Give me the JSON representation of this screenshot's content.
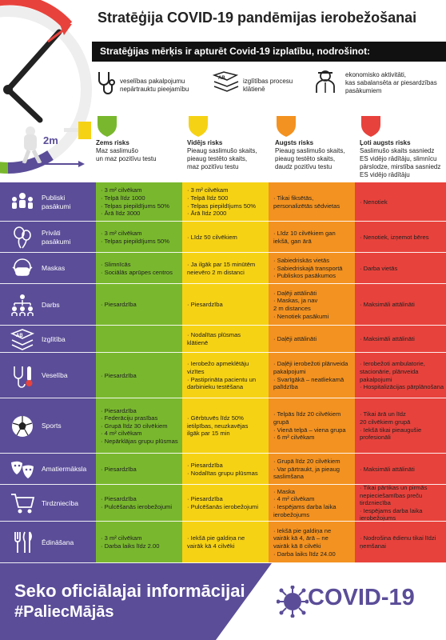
{
  "title": "Stratēģija COVID-19 pandēmijas ierobežošanai",
  "goal": "Stratēģijas mērķis ir apturēt Covid-19 izplatību, nodrošinot:",
  "ensures": [
    {
      "icon": "stethoscope-icon",
      "text": [
        "veselības pakalpojumu",
        "nepārtrauktu pieejamību"
      ]
    },
    {
      "icon": "books-icon",
      "text": [
        "izglītības procesu",
        "klātienē"
      ]
    },
    {
      "icon": "worker-icon",
      "text": [
        "ekonomisko aktivitāti,",
        "kas sabalansēta ar piesardzības",
        "pasākumiem"
      ]
    }
  ],
  "distance_label": "2m",
  "risks": [
    {
      "title": "Zems risks",
      "desc": [
        "Maz saslimušo",
        "un maz pozitīvu testu"
      ],
      "color": "#79b82e"
    },
    {
      "title": "Vidējs risks",
      "desc": [
        "Pieaug saslimušo skaits,",
        "pieaug testēto skaits,",
        "maz pozitīvu testu"
      ],
      "color": "#f6d215"
    },
    {
      "title": "Augsts risks",
      "desc": [
        "Pieaug saslimušo skaits,",
        "pieaug testēto skaits,",
        "daudz pozitīvu testu"
      ],
      "color": "#f39220"
    },
    {
      "title": "Ļoti augsts risks",
      "desc": [
        "Saslimušo skaits sasniedz",
        "ES vidējo rādītāju, slimnīcu",
        "pārslodze, mirstība sasniedz",
        "ES vidējo rādītāju"
      ],
      "color": "#e8423c"
    }
  ],
  "rows": [
    {
      "label": [
        "Publiski",
        "pasākumi"
      ],
      "icon": "people-icon",
      "cells": [
        [
          "· 3 m² cilvēkam",
          "· Telpā līdz 1000",
          "· Telpas piepildījums 50%",
          "· Ārā līdz 3000"
        ],
        [
          "· 3 m² cilvēkam",
          "· Telpā līdz 500",
          "· Telpas piepildījums 50%",
          "· Ārā līdz 2000"
        ],
        [
          "· Tikai fiksētās,",
          "  personalizētās sēdvietas"
        ],
        [
          "· Nenotiek"
        ]
      ]
    },
    {
      "label": [
        "Privāti",
        "pasākumi"
      ],
      "icon": "balloons-icon",
      "cells": [
        [
          "· 3 m² cilvēkam",
          "· Telpas piepildījums 50%"
        ],
        [
          "· Līdz 50 cilvēkiem"
        ],
        [
          "· Līdz 10 cilvēkiem gan",
          "  iekšā, gan ārā"
        ],
        [
          "· Nenotiek, izņemot bēres"
        ]
      ]
    },
    {
      "label": [
        "Maskas"
      ],
      "icon": "mask-icon",
      "cells": [
        [
          "· Slimnīcās",
          "· Sociālās aprūpes centros"
        ],
        [
          "· Ja ilgāk par 15 minūtēm",
          "  neievēro 2 m distanci"
        ],
        [
          "· Sabiedriskās vietās",
          "· Sabiedriskajā transportā",
          "· Publiskos pasākumos"
        ],
        [
          "· Darba vietās"
        ]
      ]
    },
    {
      "label": [
        "Darbs"
      ],
      "icon": "org-chart-icon",
      "cells": [
        [
          "· Piesardzība"
        ],
        [
          "· Piesardzība"
        ],
        [
          "· Daļēji attālināti",
          "· Maskas, ja nav",
          "  2 m distances",
          "· Nenotiek pasākumi"
        ],
        [
          "· Maksimāli attālināti"
        ]
      ]
    },
    {
      "label": [
        "Izglītība"
      ],
      "icon": "book-icon",
      "cells": [
        [],
        [
          "· Nodalītas plūsmas",
          "  klātienē"
        ],
        [
          "· Daļēji attālināti"
        ],
        [
          "· Maksimāli attālināti"
        ]
      ]
    },
    {
      "label": [
        "Veselība"
      ],
      "icon": "thermometer-icon",
      "cells": [
        [
          "· Piesardzība"
        ],
        [
          "· Ierobežo apmeklētāju",
          "  vizītes",
          "· Pastiprināta pacientu un",
          "  darbinieku testēšana"
        ],
        [
          "· Daļēji ierobežoti plānveida",
          "  pakalpojumi",
          "· Svarīgākā – neatliekamā",
          "  palīdzība"
        ],
        [
          "· Ierobežoti ambulatorie,",
          "  stacionārie, plānveida",
          "  pakalpojumi",
          "· Hospitalizācijas pārplānošana"
        ]
      ]
    },
    {
      "label": [
        "Sports"
      ],
      "icon": "ball-icon",
      "cells": [
        [
          "· Piesardzība",
          "· Federāciju prasības",
          "· Grupā līdz 30 cilvēkiem",
          "· 4 m² cilvēkam",
          "· Nepārklājas grupu plūsmas"
        ],
        [
          "· Gērbtuvēs līdz 50%",
          "  ietilpības, neuzkavējas",
          "  ilgāk par 15 min"
        ],
        [
          "· Telpās līdz 20 cilvēkiem",
          "  grupā",
          "· Vienā telpā – viena grupa",
          "· 6 m² cilvēkam"
        ],
        [
          "· Tikai ārā un līdz",
          "  20 cilvēkiem grupā",
          "· Iekšā tikai pieaugušie",
          "  profesionāli"
        ]
      ]
    },
    {
      "label": [
        "Amatiermāksla"
      ],
      "icon": "theater-icon",
      "cells": [
        [
          "· Piesardzība"
        ],
        [
          "· Piesardzība",
          "· Nodalītas grupu plūsmas"
        ],
        [
          "· Grupā līdz 20 cilvēkiem",
          "· Var pārtraukt, ja pieaug",
          "  saslimšana"
        ],
        [
          "· Maksimāli attālināti"
        ]
      ]
    },
    {
      "label": [
        "Tirdzniecība"
      ],
      "icon": "cart-icon",
      "cells": [
        [
          "· Piesardzība",
          "· Pulcēšanās ierobežojumi"
        ],
        [
          "· Piesardzība",
          "· Pulcēšanās ierobežojumi"
        ],
        [
          "· Maska",
          "· 4 m² cilvēkam",
          "· Iespējams darba laika",
          "  ierobežojums"
        ],
        [
          "· Tikai pārtikas un pirmās",
          "  nepieciešamības preču",
          "  tirdzniecība",
          "· Iespējams darba laika",
          "  ierobežojums"
        ]
      ]
    },
    {
      "label": [
        "Ēdināšana"
      ],
      "icon": "cutlery-icon",
      "cells": [
        [
          "· 3 m² cilvēkam",
          "· Darba laiks līdz 2.00"
        ],
        [
          "· Iekšā pie galdiņa ne",
          "  vairāk kā 4 cilvēki"
        ],
        [
          "· Iekšā pie galdiņa ne",
          "  vairāk kā 4, ārā – ne",
          "  vairāk kā 8 cilvēki",
          "· Darba laiks līdz 24.00"
        ],
        [
          "· Nodrošina ēdienu tikai līdzi",
          "  ņemšanai"
        ]
      ]
    }
  ],
  "footer": {
    "line1": "Seko oficiālajai informācijai",
    "line2": "#PaliecMājās",
    "badge": "COVID-19"
  },
  "colors": {
    "purple": "#5b4d98",
    "green": "#79b82e",
    "yellow": "#f6d215",
    "orange": "#f39220",
    "red": "#e8423c"
  }
}
